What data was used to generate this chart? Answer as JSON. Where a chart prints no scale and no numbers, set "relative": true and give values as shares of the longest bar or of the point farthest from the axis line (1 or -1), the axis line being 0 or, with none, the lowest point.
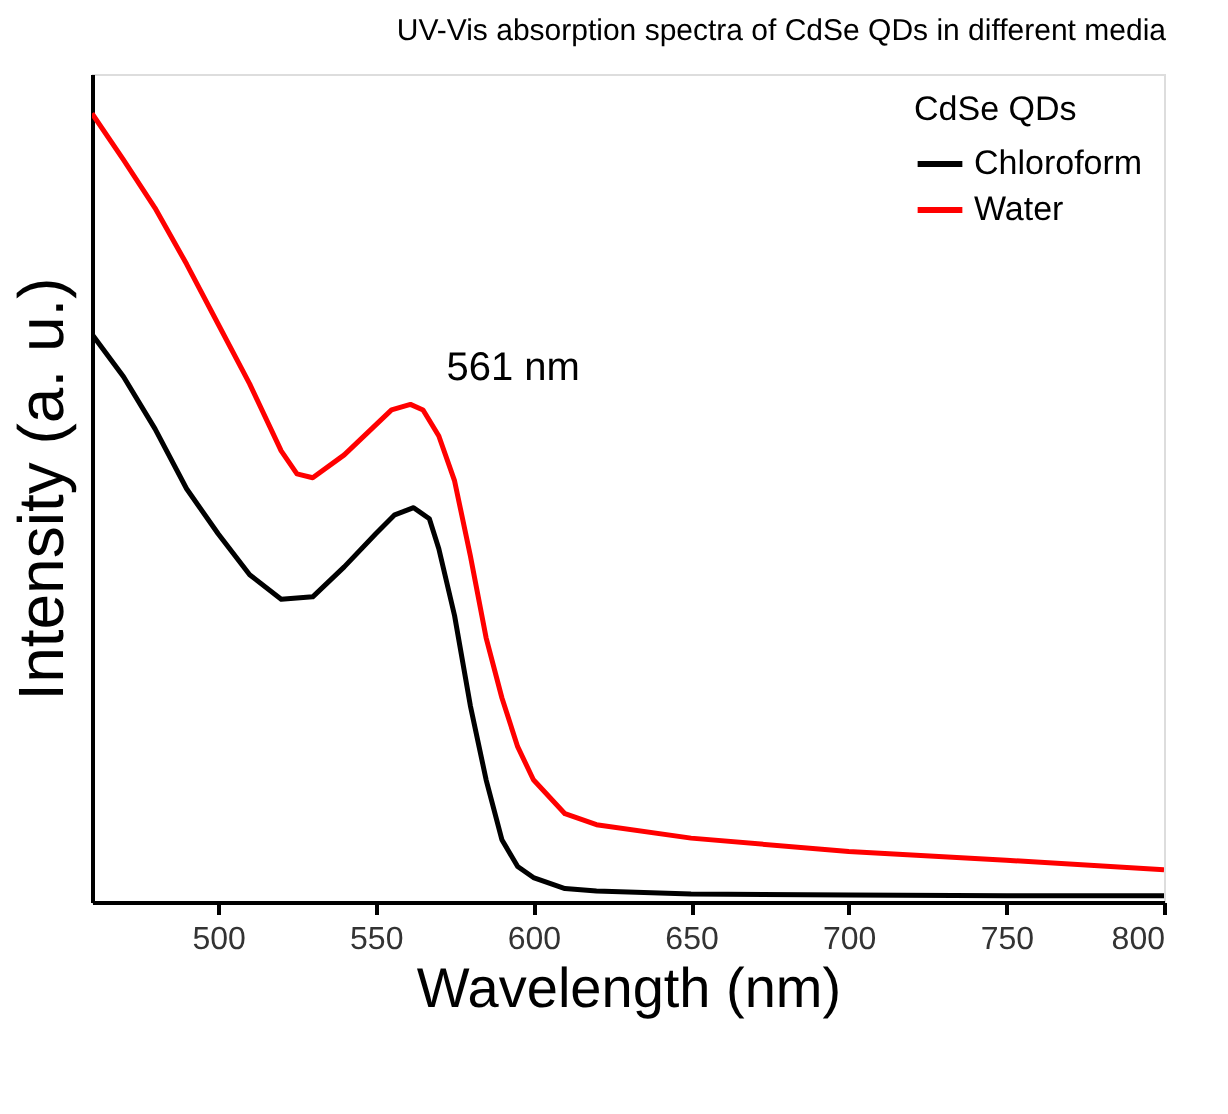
{
  "chart_data": {
    "type": "line",
    "title": "UV-Vis absorption spectra of CdSe QDs in different media",
    "xlabel": "Wavelength (nm)",
    "ylabel": "Intensity (a. u.)",
    "legend_title": "CdSe QDs",
    "relative": true,
    "xlim": [
      460,
      800
    ],
    "xticks": [
      500,
      550,
      600,
      650,
      700,
      750,
      800
    ],
    "grid": false,
    "legend": "top right",
    "marker": "none",
    "line_style": "solid",
    "annotations": [
      {
        "text": "561 nm",
        "x": 561,
        "y": 0.631
      }
    ],
    "series": [
      {
        "name": "Chloroform",
        "color": "#000000",
        "x": [
          460,
          470,
          480,
          490,
          500,
          510,
          520,
          530,
          540,
          550,
          556,
          562,
          567,
          570,
          575,
          580,
          585,
          590,
          595,
          600,
          610,
          620,
          650,
          700,
          750,
          800
        ],
        "values": [
          0.72,
          0.666,
          0.6,
          0.524,
          0.467,
          0.415,
          0.384,
          0.387,
          0.425,
          0.467,
          0.491,
          0.5,
          0.486,
          0.448,
          0.363,
          0.249,
          0.155,
          0.079,
          0.045,
          0.031,
          0.017,
          0.014,
          0.01,
          0.009,
          0.008,
          0.008
        ]
      },
      {
        "name": "Water",
        "color": "#ff0000",
        "x": [
          460,
          470,
          480,
          490,
          500,
          510,
          520,
          525,
          530,
          540,
          550,
          555,
          561,
          565,
          570,
          575,
          580,
          585,
          590,
          595,
          600,
          610,
          620,
          650,
          700,
          750,
          800
        ],
        "values": [
          1.0,
          0.941,
          0.88,
          0.809,
          0.733,
          0.657,
          0.572,
          0.543,
          0.538,
          0.567,
          0.605,
          0.624,
          0.631,
          0.624,
          0.591,
          0.534,
          0.439,
          0.335,
          0.259,
          0.197,
          0.155,
          0.112,
          0.098,
          0.081,
          0.064,
          0.053,
          0.041
        ]
      }
    ]
  }
}
